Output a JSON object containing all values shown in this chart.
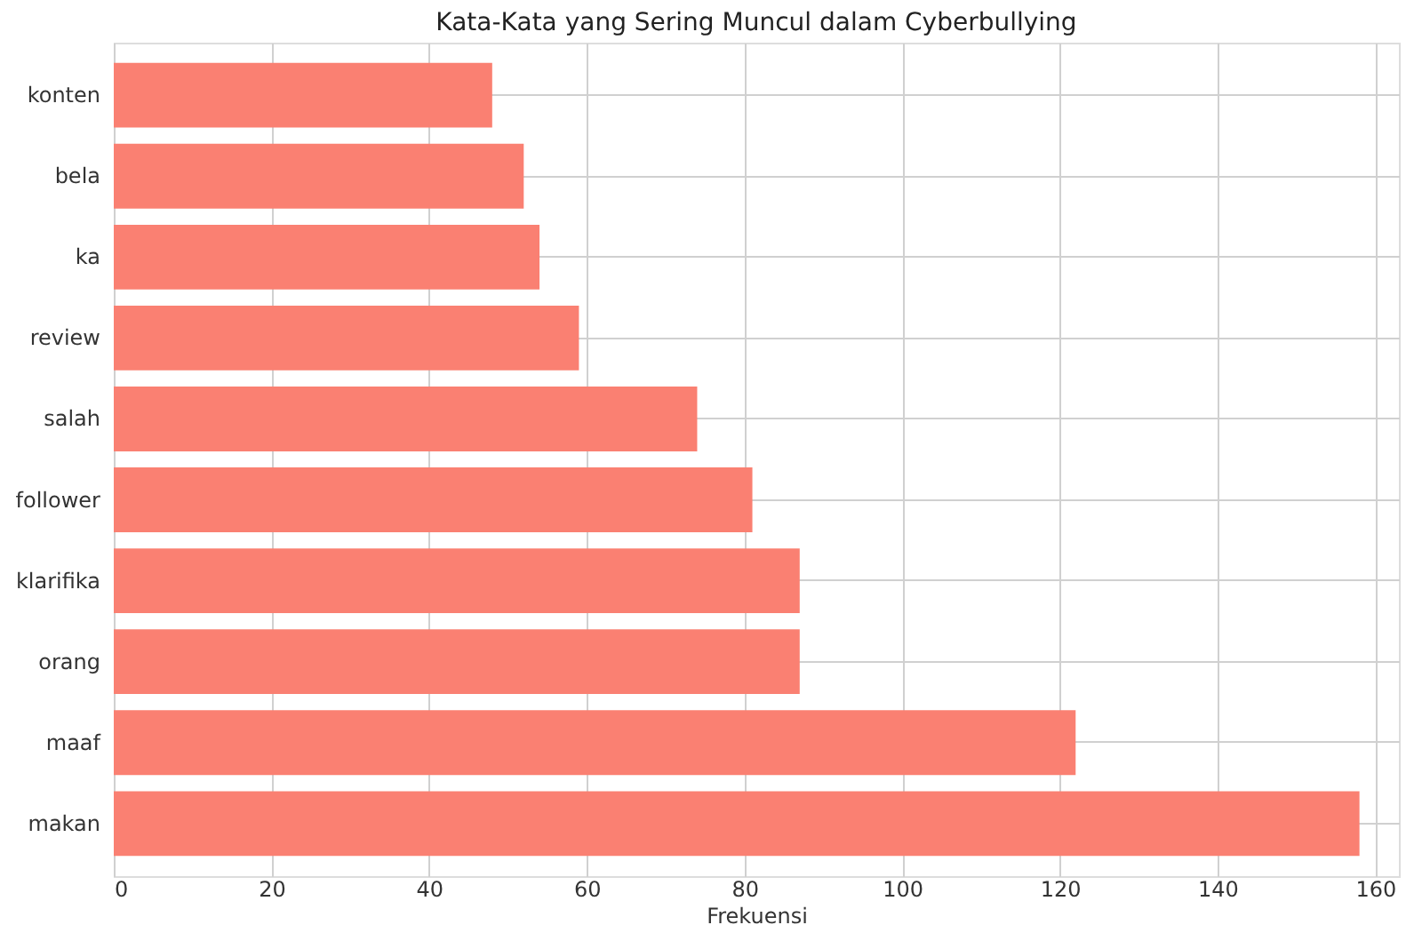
{
  "chart_data": {
    "type": "bar",
    "orientation": "horizontal",
    "title": "Kata-Kata yang Sering Muncul dalam Cyberbullying",
    "xlabel": "Frekuensi",
    "categories": [
      "konten",
      "bela",
      "ka",
      "review",
      "salah",
      "follower",
      "klarifika",
      "orang",
      "maaf",
      "makan"
    ],
    "values": [
      48,
      52,
      54,
      59,
      74,
      81,
      87,
      87,
      122,
      158
    ],
    "color": "#fa8072",
    "xlim": [
      0,
      163
    ],
    "xticks": [
      0,
      20,
      40,
      60,
      80,
      100,
      120,
      140,
      160
    ],
    "grid": true
  }
}
